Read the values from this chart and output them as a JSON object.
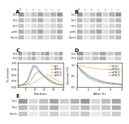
{
  "background": "#ffffff",
  "panel_label_fontsize": 5,
  "panelC_lines": {
    "x": [
      1,
      2,
      3,
      4,
      5,
      6,
      7,
      8,
      9,
      10,
      11,
      12,
      13,
      14,
      15,
      16,
      17,
      18,
      19,
      20,
      21,
      22,
      23,
      24,
      25
    ],
    "series": [
      {
        "label": "IgG",
        "color": "#f5a623",
        "y": [
          0.05,
          0.05,
          0.05,
          0.06,
          0.07,
          0.08,
          0.1,
          0.12,
          0.15,
          0.2,
          0.25,
          0.3,
          0.35,
          0.4,
          0.45,
          0.5,
          0.5,
          0.45,
          0.4,
          0.35,
          0.3,
          0.25,
          0.2,
          0.15,
          0.1
        ]
      },
      {
        "label": "aTSC1",
        "color": "#e05c5c",
        "y": [
          0.05,
          0.06,
          0.08,
          0.12,
          0.18,
          0.3,
          0.5,
          0.7,
          0.9,
          0.85,
          0.75,
          0.65,
          0.55,
          0.5,
          0.45,
          0.4,
          0.35,
          0.3,
          0.25,
          0.2,
          0.15,
          0.12,
          0.1,
          0.08,
          0.06
        ]
      },
      {
        "label": "aTSC2",
        "color": "#5c8ae0",
        "y": [
          0.05,
          0.06,
          0.08,
          0.1,
          0.15,
          0.25,
          0.4,
          0.6,
          0.8,
          0.9,
          0.85,
          0.75,
          0.6,
          0.5,
          0.42,
          0.35,
          0.28,
          0.22,
          0.18,
          0.15,
          0.12,
          0.1,
          0.08,
          0.07,
          0.06
        ]
      },
      {
        "label": "aTSC3",
        "color": "#5cba5c",
        "y": [
          0.05,
          0.05,
          0.06,
          0.07,
          0.09,
          0.12,
          0.18,
          0.28,
          0.4,
          0.52,
          0.6,
          0.65,
          0.62,
          0.55,
          0.46,
          0.38,
          0.3,
          0.24,
          0.19,
          0.16,
          0.13,
          0.11,
          0.09,
          0.08,
          0.07
        ]
      }
    ],
    "xlabel": "Fractions",
    "ylabel": "% of total",
    "xlim": [
      1,
      25
    ],
    "ylim": [
      0,
      1.0
    ],
    "label_fontsize": 3.0
  },
  "panelD_lines": {
    "x": [
      0,
      1,
      2,
      3,
      4,
      5,
      6,
      7,
      8
    ],
    "series": [
      {
        "label": "siCtrl",
        "color": "#f5a623",
        "y": [
          1.0,
          0.95,
          0.9,
          0.85,
          0.82,
          0.8,
          0.78,
          0.76,
          0.75
        ]
      },
      {
        "label": "siTSC1",
        "color": "#e05c5c",
        "y": [
          1.0,
          0.75,
          0.55,
          0.4,
          0.3,
          0.22,
          0.18,
          0.15,
          0.12
        ]
      },
      {
        "label": "siTSC2",
        "color": "#5c8ae0",
        "y": [
          1.0,
          0.7,
          0.48,
          0.35,
          0.26,
          0.2,
          0.16,
          0.13,
          0.11
        ]
      },
      {
        "label": "siTSC3",
        "color": "#5cba5c",
        "y": [
          1.0,
          0.65,
          0.42,
          0.28,
          0.2,
          0.15,
          0.12,
          0.1,
          0.08
        ]
      }
    ],
    "xlabel": "After (h)",
    "ylabel": "Survival (%)",
    "xlim": [
      0,
      8
    ],
    "ylim": [
      0,
      1.1
    ],
    "label_fontsize": 3.0
  },
  "blot_bg": "#e8e8e8",
  "text_color": "#222222",
  "label_tiny": 2.5
}
